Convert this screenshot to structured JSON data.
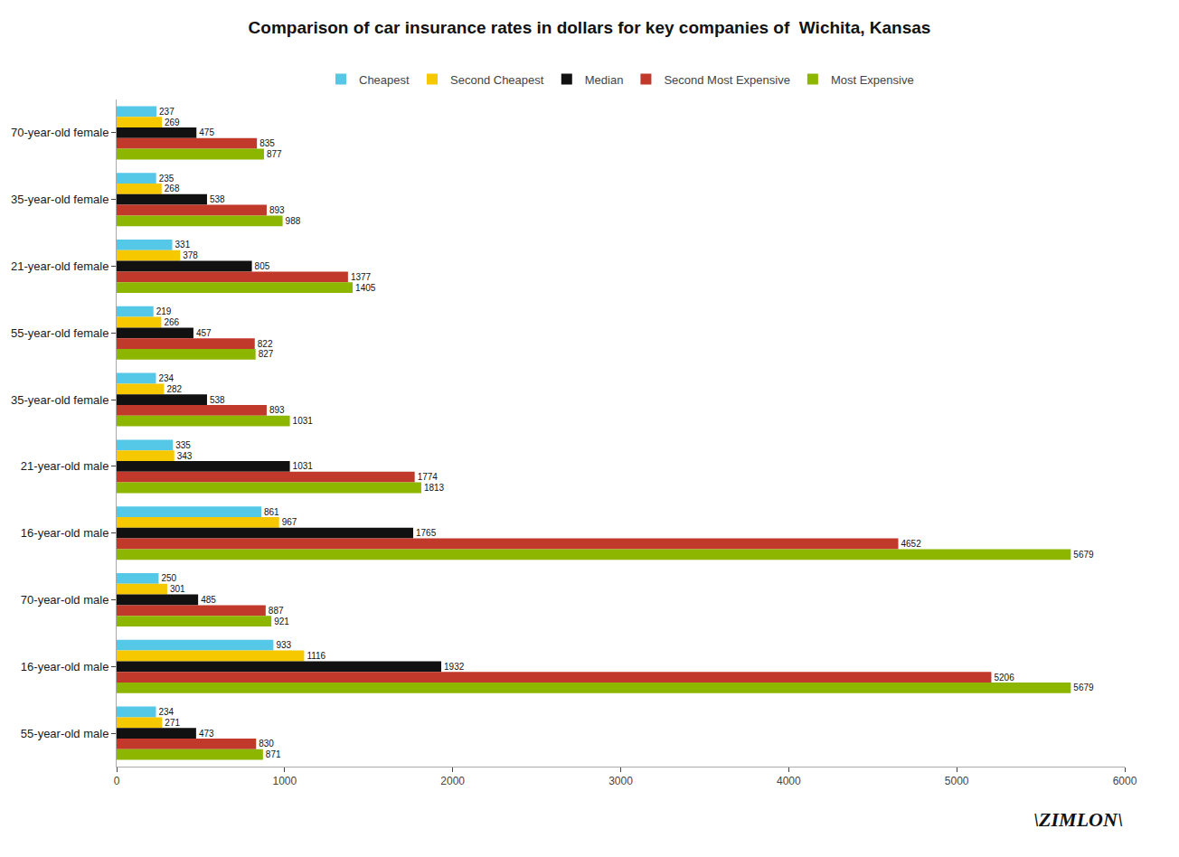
{
  "chart_data": {
    "type": "bar",
    "orientation": "horizontal",
    "title": "Comparison of car insurance rates in dollars for key companies of  Wichita, Kansas",
    "categories": [
      "70-year-old female",
      "35-year-old female",
      "21-year-old female",
      "55-year-old female",
      "35-year-old female",
      "21-year-old male",
      "16-year-old male",
      "70-year-old male",
      "16-year-old male",
      "55-year-old male"
    ],
    "series": [
      {
        "name": "Cheapest",
        "color": "#55c8e8",
        "values": [
          237,
          235,
          331,
          219,
          234,
          335,
          861,
          250,
          933,
          234
        ]
      },
      {
        "name": "Second Cheapest",
        "color": "#f5c800",
        "values": [
          269,
          268,
          378,
          266,
          282,
          343,
          967,
          301,
          1116,
          271
        ]
      },
      {
        "name": "Median",
        "color": "#111111",
        "values": [
          475,
          538,
          805,
          457,
          538,
          1031,
          1765,
          485,
          1932,
          473
        ]
      },
      {
        "name": "Second Most Expensive",
        "color": "#c0392b",
        "values": [
          835,
          893,
          1377,
          822,
          893,
          1774,
          4652,
          887,
          5206,
          830
        ]
      },
      {
        "name": "Most Expensive",
        "color": "#8db600",
        "values": [
          877,
          988,
          1405,
          827,
          1031,
          1813,
          5679,
          921,
          5679,
          871
        ]
      }
    ],
    "xlim": [
      0,
      6000
    ],
    "xticks": [
      0,
      1000,
      2000,
      3000,
      4000,
      5000,
      6000
    ],
    "grid": false,
    "legend": "top",
    "data_labels": true,
    "annotations": [
      "\\ZIMLON\\"
    ]
  }
}
